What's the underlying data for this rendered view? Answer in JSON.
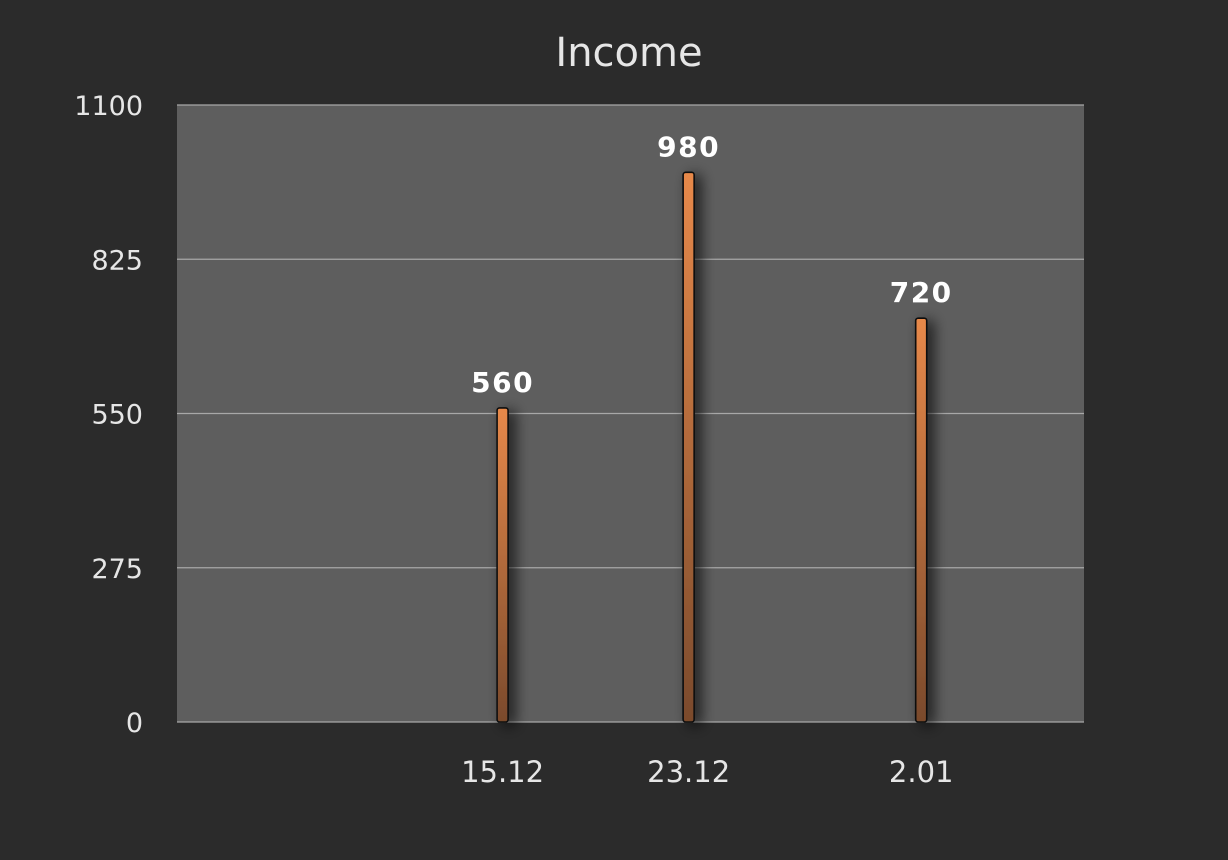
{
  "chart_data": {
    "type": "bar",
    "title": "Income",
    "xlabel": "",
    "ylabel": "",
    "categories": [
      "15.12",
      "23.12",
      "2.01"
    ],
    "x": [
      "2023-12-15",
      "2023-12-23",
      "2024-01-02"
    ],
    "values": [
      560,
      980,
      720
    ],
    "data_labels": [
      "560",
      "980",
      "720"
    ],
    "ylim": [
      0,
      1100
    ],
    "yticks": [
      0,
      275,
      550,
      825,
      1100
    ],
    "ytick_labels": [
      "0",
      "275",
      "550",
      "825",
      "1100"
    ],
    "xlim": [
      "2023-12-01",
      "2024-01-09"
    ],
    "x_axis_type": "date",
    "grid": true,
    "legend": "none",
    "colors": {
      "background": "#2b2b2b",
      "plot_area": "#5e5e5e",
      "gridline": "#a8a8a8",
      "bar_top": "#e8894a",
      "bar_bottom": "#7a4a2c",
      "bar_outline": "#111111"
    }
  }
}
